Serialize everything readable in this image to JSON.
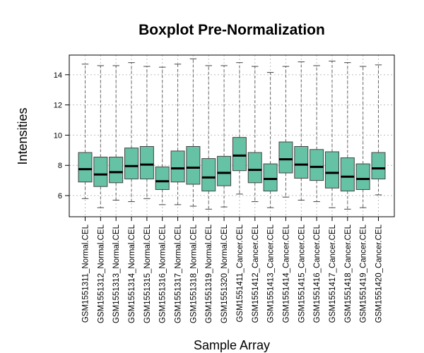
{
  "chart_data": {
    "type": "boxplot",
    "title": "Boxplot Pre-Normalization",
    "xlabel": "Sample Array",
    "ylabel": "Intensities",
    "ylim": [
      4.6,
      15.3
    ],
    "yticks": [
      6,
      8,
      10,
      12,
      14
    ],
    "grid": true,
    "box_color": "#66c2a5",
    "categories": [
      "GSM1551311_Normal.CEL",
      "GSM1551312_Normal.CEL",
      "GSM1551313_Normal.CEL",
      "GSM1551314_Normal.CEL",
      "GSM1551315_Normal.CEL",
      "GSM1551316_Normal.CEL",
      "GSM1551317_Normal.CEL",
      "GSM1551318_Normal.CEL",
      "GSM1551319_Normal.CEL",
      "GSM1551320_Normal.CEL",
      "GSM1551411_Cancer.CEL",
      "GSM1551412_Cancer.CEL",
      "GSM1551413_Cancer.CEL",
      "GSM1551414_Cancer.CEL",
      "GSM1551415_Cancer.CEL",
      "GSM1551416_Cancer.CEL",
      "GSM1551417_Cancer.CEL",
      "GSM1551418_Cancer.CEL",
      "GSM1551419_Cancer.CEL",
      "GSM1551420_Cancer.CEL"
    ],
    "boxes": [
      {
        "min": 5.8,
        "q1": 6.9,
        "median": 7.75,
        "q3": 8.85,
        "max": 14.7
      },
      {
        "min": 5.2,
        "q1": 6.6,
        "median": 7.4,
        "q3": 8.55,
        "max": 14.6
      },
      {
        "min": 5.7,
        "q1": 6.85,
        "median": 7.55,
        "q3": 8.55,
        "max": 14.6
      },
      {
        "min": 5.6,
        "q1": 7.1,
        "median": 7.95,
        "q3": 9.15,
        "max": 14.8
      },
      {
        "min": 5.8,
        "q1": 7.1,
        "median": 8.05,
        "q3": 9.25,
        "max": 14.55
      },
      {
        "min": 5.4,
        "q1": 6.4,
        "median": 6.95,
        "q3": 7.9,
        "max": 14.5
      },
      {
        "min": 5.4,
        "q1": 6.9,
        "median": 7.8,
        "q3": 8.95,
        "max": 14.7
      },
      {
        "min": 5.3,
        "q1": 6.75,
        "median": 7.85,
        "q3": 9.25,
        "max": 15.05
      },
      {
        "min": 5.1,
        "q1": 6.3,
        "median": 7.2,
        "q3": 8.45,
        "max": 14.6
      },
      {
        "min": 5.25,
        "q1": 6.65,
        "median": 7.5,
        "q3": 8.6,
        "max": 14.6
      },
      {
        "min": 6.1,
        "q1": 7.65,
        "median": 8.65,
        "q3": 9.85,
        "max": 14.8
      },
      {
        "min": 5.6,
        "q1": 6.85,
        "median": 7.7,
        "q3": 8.85,
        "max": 14.55
      },
      {
        "min": 5.2,
        "q1": 6.3,
        "median": 7.1,
        "q3": 8.1,
        "max": 14.15
      },
      {
        "min": 5.9,
        "q1": 7.5,
        "median": 8.4,
        "q3": 9.55,
        "max": 14.55
      },
      {
        "min": 5.7,
        "q1": 7.15,
        "median": 8.05,
        "q3": 9.25,
        "max": 14.85
      },
      {
        "min": 5.6,
        "q1": 7.0,
        "median": 7.9,
        "q3": 9.05,
        "max": 14.6
      },
      {
        "min": 5.2,
        "q1": 6.5,
        "median": 7.5,
        "q3": 8.9,
        "max": 14.9
      },
      {
        "min": 5.1,
        "q1": 6.3,
        "median": 7.25,
        "q3": 8.5,
        "max": 14.8
      },
      {
        "min": 5.2,
        "q1": 6.4,
        "median": 7.1,
        "q3": 8.1,
        "max": 14.55
      },
      {
        "min": 6.05,
        "q1": 7.1,
        "median": 7.8,
        "q3": 8.85,
        "max": 14.65
      }
    ]
  }
}
